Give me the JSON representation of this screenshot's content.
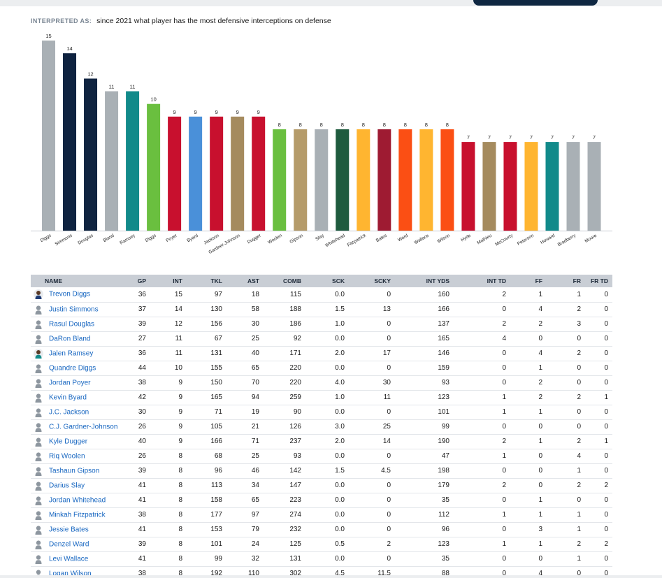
{
  "interpreted": {
    "label": "INTERPRETED AS:",
    "question": "since 2021 what player has the most defensive interceptions on defense"
  },
  "chart_data": {
    "type": "bar",
    "title": "",
    "xlabel": "",
    "ylabel": "",
    "ylim": [
      0,
      15
    ],
    "categories": [
      "Diggs",
      "Simmons",
      "Douglas",
      "Bland",
      "Ramsey",
      "Diggs",
      "Poyer",
      "Byard",
      "Jackson",
      "Gardner-Johnson",
      "Dugger",
      "Woolen",
      "Gipson",
      "Slay",
      "Whitehead",
      "Fitzpatrick",
      "Bates",
      "Ward",
      "Wallace",
      "Wilson",
      "Hyde",
      "Mathieu",
      "McCourty",
      "Peterson",
      "Howard",
      "Bradberry",
      "Moore"
    ],
    "values": [
      15,
      14,
      12,
      11,
      11,
      10,
      9,
      9,
      9,
      9,
      9,
      8,
      8,
      8,
      8,
      8,
      8,
      8,
      8,
      8,
      7,
      7,
      7,
      7,
      7,
      7,
      7
    ],
    "colors": [
      "#a9b0b5",
      "#0f2340",
      "#0f2340",
      "#a9b0b5",
      "#118a8a",
      "#6abf3f",
      "#c8102e",
      "#4a90d9",
      "#c8102e",
      "#a58b5e",
      "#c8102e",
      "#6abf3f",
      "#b59b6a",
      "#a9b0b5",
      "#1f5b3e",
      "#ffb530",
      "#9e1b32",
      "#fb4f14",
      "#ffb530",
      "#fb4f14",
      "#c8102e",
      "#a58b5e",
      "#c8102e",
      "#ffb530",
      "#118a8a",
      "#a9b0b5",
      "#a9b0b5"
    ],
    "grid": false,
    "legend": "none"
  },
  "table": {
    "columns": [
      "NAME",
      "GP",
      "INT",
      "TKL",
      "AST",
      "COMB",
      "SCK",
      "SCKY",
      "INT YDS",
      "INT TD",
      "FF",
      "FR",
      "FR TD"
    ],
    "rows": [
      {
        "avatar": "photo",
        "name": "Trevon Diggs",
        "cells": [
          "36",
          "15",
          "97",
          "18",
          "115",
          "0.0",
          "0",
          "160",
          "2",
          "1",
          "1",
          "0"
        ]
      },
      {
        "avatar": "generic",
        "name": "Justin Simmons",
        "cells": [
          "37",
          "14",
          "130",
          "58",
          "188",
          "1.5",
          "13",
          "166",
          "0",
          "4",
          "2",
          "0"
        ]
      },
      {
        "avatar": "generic",
        "name": "Rasul Douglas",
        "cells": [
          "39",
          "12",
          "156",
          "30",
          "186",
          "1.0",
          "0",
          "137",
          "2",
          "2",
          "3",
          "0"
        ]
      },
      {
        "avatar": "generic",
        "name": "DaRon Bland",
        "cells": [
          "27",
          "11",
          "67",
          "25",
          "92",
          "0.0",
          "0",
          "165",
          "4",
          "0",
          "0",
          "0"
        ]
      },
      {
        "avatar": "photo-teal",
        "name": "Jalen Ramsey",
        "cells": [
          "36",
          "11",
          "131",
          "40",
          "171",
          "2.0",
          "17",
          "146",
          "0",
          "4",
          "2",
          "0"
        ]
      },
      {
        "avatar": "generic",
        "name": "Quandre Diggs",
        "cells": [
          "44",
          "10",
          "155",
          "65",
          "220",
          "0.0",
          "0",
          "159",
          "0",
          "1",
          "0",
          "0"
        ]
      },
      {
        "avatar": "generic",
        "name": "Jordan Poyer",
        "cells": [
          "38",
          "9",
          "150",
          "70",
          "220",
          "4.0",
          "30",
          "93",
          "0",
          "2",
          "0",
          "0"
        ]
      },
      {
        "avatar": "generic",
        "name": "Kevin Byard",
        "cells": [
          "42",
          "9",
          "165",
          "94",
          "259",
          "1.0",
          "11",
          "123",
          "1",
          "2",
          "2",
          "1"
        ]
      },
      {
        "avatar": "generic",
        "name": "J.C. Jackson",
        "cells": [
          "30",
          "9",
          "71",
          "19",
          "90",
          "0.0",
          "0",
          "101",
          "1",
          "1",
          "0",
          "0"
        ]
      },
      {
        "avatar": "generic",
        "name": "C.J. Gardner-Johnson",
        "cells": [
          "26",
          "9",
          "105",
          "21",
          "126",
          "3.0",
          "25",
          "99",
          "0",
          "0",
          "0",
          "0"
        ]
      },
      {
        "avatar": "generic",
        "name": "Kyle Dugger",
        "cells": [
          "40",
          "9",
          "166",
          "71",
          "237",
          "2.0",
          "14",
          "190",
          "2",
          "1",
          "2",
          "1"
        ]
      },
      {
        "avatar": "generic",
        "name": "Riq Woolen",
        "cells": [
          "26",
          "8",
          "68",
          "25",
          "93",
          "0.0",
          "0",
          "47",
          "1",
          "0",
          "4",
          "0"
        ]
      },
      {
        "avatar": "generic",
        "name": "Tashaun Gipson",
        "cells": [
          "39",
          "8",
          "96",
          "46",
          "142",
          "1.5",
          "4.5",
          "198",
          "0",
          "0",
          "1",
          "0"
        ]
      },
      {
        "avatar": "generic",
        "name": "Darius Slay",
        "cells": [
          "41",
          "8",
          "113",
          "34",
          "147",
          "0.0",
          "0",
          "179",
          "2",
          "0",
          "2",
          "2"
        ]
      },
      {
        "avatar": "generic",
        "name": "Jordan Whitehead",
        "cells": [
          "41",
          "8",
          "158",
          "65",
          "223",
          "0.0",
          "0",
          "35",
          "0",
          "1",
          "0",
          "0"
        ]
      },
      {
        "avatar": "generic",
        "name": "Minkah Fitzpatrick",
        "cells": [
          "38",
          "8",
          "177",
          "97",
          "274",
          "0.0",
          "0",
          "112",
          "1",
          "1",
          "1",
          "0"
        ]
      },
      {
        "avatar": "generic",
        "name": "Jessie Bates",
        "cells": [
          "41",
          "8",
          "153",
          "79",
          "232",
          "0.0",
          "0",
          "96",
          "0",
          "3",
          "1",
          "0"
        ]
      },
      {
        "avatar": "generic",
        "name": "Denzel Ward",
        "cells": [
          "39",
          "8",
          "101",
          "24",
          "125",
          "0.5",
          "2",
          "123",
          "1",
          "1",
          "2",
          "2"
        ]
      },
      {
        "avatar": "generic",
        "name": "Levi Wallace",
        "cells": [
          "41",
          "8",
          "99",
          "32",
          "131",
          "0.0",
          "0",
          "35",
          "0",
          "0",
          "1",
          "0"
        ]
      },
      {
        "avatar": "generic",
        "name": "Logan Wilson",
        "cells": [
          "38",
          "8",
          "192",
          "110",
          "302",
          "4.5",
          "11.5",
          "88",
          "0",
          "4",
          "0",
          "0"
        ]
      }
    ]
  }
}
